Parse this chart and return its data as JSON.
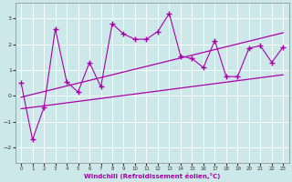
{
  "xlabel": "Windchill (Refroidissement éolien,°C)",
  "bg_color": "#cde8e8",
  "line_color": "#aa00aa",
  "xlim": [
    -0.5,
    23.5
  ],
  "ylim": [
    -2.6,
    3.6
  ],
  "yticks": [
    -2,
    -1,
    0,
    1,
    2,
    3
  ],
  "xticks": [
    0,
    1,
    2,
    3,
    4,
    5,
    6,
    7,
    8,
    9,
    10,
    11,
    12,
    13,
    14,
    15,
    16,
    17,
    18,
    19,
    20,
    21,
    22,
    23
  ],
  "series1_x": [
    0,
    1,
    2,
    3,
    4,
    5,
    6,
    7,
    8,
    9,
    10,
    11,
    12,
    13,
    14,
    15,
    16,
    17,
    18,
    19,
    20,
    21,
    22,
    23
  ],
  "series1_y": [
    0.5,
    -1.7,
    -0.45,
    2.6,
    0.55,
    0.15,
    1.3,
    0.35,
    2.8,
    2.4,
    2.2,
    2.2,
    2.5,
    3.2,
    1.55,
    1.45,
    1.1,
    2.15,
    0.75,
    0.75,
    1.85,
    1.95,
    1.3,
    1.9
  ],
  "series2_x": [
    0,
    23
  ],
  "series2_y": [
    -0.05,
    2.45
  ],
  "series3_x": [
    0,
    23
  ],
  "series3_y": [
    -0.5,
    0.82
  ],
  "grid_color": "#ffffff",
  "spine_color": "#888888"
}
